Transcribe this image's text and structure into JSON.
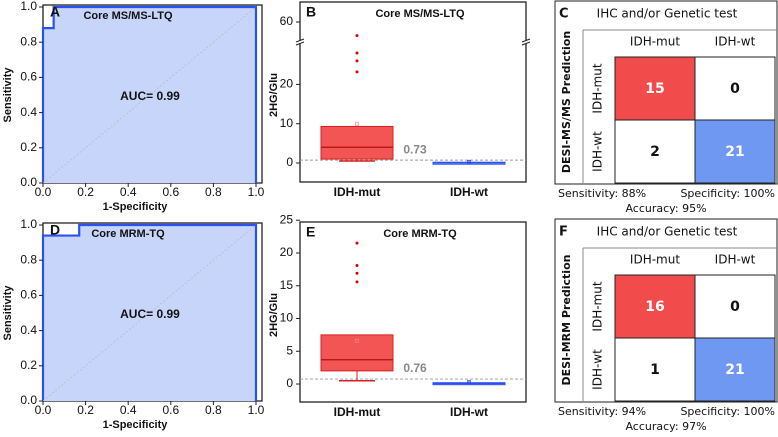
{
  "colors": {
    "roc_fill": "#c7d5fb",
    "roc_line": "#2a52f0",
    "red": "#f24b4b",
    "red_edge": "#d42020",
    "blue": "#6f98f2",
    "blue_edge": "#2a52f0",
    "grid": "#bbbbbb"
  },
  "chart_data": [
    {
      "panel": "A",
      "type": "line",
      "title": "Core MS/MS-LTQ",
      "xlabel": "1-Specificity",
      "ylabel": "Sensitivity",
      "xlim": [
        0,
        1
      ],
      "ylim": [
        0,
        1
      ],
      "xticks": [
        "0.0",
        "0.2",
        "0.4",
        "0.6",
        "0.8",
        "1.0"
      ],
      "yticks": [
        "0.0",
        "0.2",
        "0.4",
        "0.6",
        "0.8",
        "1.0"
      ],
      "points": [
        [
          0,
          0
        ],
        [
          0,
          0.88
        ],
        [
          0.05,
          0.88
        ],
        [
          0.05,
          1
        ],
        [
          1,
          1
        ],
        [
          1,
          0
        ]
      ],
      "annotation": "AUC= 0.99"
    },
    {
      "panel": "B",
      "type": "box",
      "title": "Core MS/MS-LTQ",
      "ylabel": "2HG/Glu",
      "categories": [
        "IDH-mut",
        "IDH-wt"
      ],
      "yticks_lower": [
        "0",
        "10",
        "20"
      ],
      "yticks_upper": [
        "60"
      ],
      "axis_break": true,
      "ylim_lower": [
        -5,
        30
      ],
      "ylim_upper": [
        40,
        65
      ],
      "boxes": [
        {
          "q1": 1,
          "median": 4,
          "q3": 9.3,
          "low": 0.5,
          "high": 9.3,
          "mean": 10,
          "outliers": [
            23.2,
            26,
            28,
            47
          ]
        },
        {
          "q1": 0,
          "median": 0.1,
          "q3": 0.2,
          "low": 0,
          "high": 0.8,
          "mean": 0.3,
          "outliers": []
        }
      ],
      "threshold": 0.73,
      "threshold_label": "0.73"
    },
    {
      "panel": "C",
      "type": "table",
      "title": "IHC and/or Genetic test",
      "row_header": "DESI-MS/MS Prediction",
      "columns": [
        "IDH-mut",
        "IDH-wt"
      ],
      "rows": [
        "IDH-mut",
        "IDH-wt"
      ],
      "matrix": [
        [
          "15",
          "0"
        ],
        [
          "2",
          "21"
        ]
      ],
      "sensitivity": "Sensitivity: 88%",
      "specificity": "Specificity: 100%",
      "accuracy": "Accuracy: 95%"
    },
    {
      "panel": "D",
      "type": "line",
      "title": "Core MRM-TQ",
      "xlabel": "1-Specificity",
      "ylabel": "Sensitivity",
      "xlim": [
        0,
        1
      ],
      "ylim": [
        0,
        1
      ],
      "xticks": [
        "0.0",
        "0.2",
        "0.4",
        "0.6",
        "0.8",
        "1.0"
      ],
      "yticks": [
        "0.0",
        "0.2",
        "0.4",
        "0.6",
        "0.8",
        "1.0"
      ],
      "points": [
        [
          0,
          0
        ],
        [
          0,
          0.94
        ],
        [
          0.17,
          0.94
        ],
        [
          0.17,
          1
        ],
        [
          1,
          1
        ],
        [
          1,
          0
        ]
      ],
      "annotation": "AUC= 0.99"
    },
    {
      "panel": "E",
      "type": "box",
      "title": "Core MRM-TQ",
      "ylabel": "2HG/Glu",
      "categories": [
        "IDH-mut",
        "IDH-wt"
      ],
      "yticks_lower": [
        "0",
        "5",
        "10",
        "15",
        "20",
        "25"
      ],
      "yticks_upper": [],
      "axis_break": false,
      "ylim_lower": [
        -2.5,
        25
      ],
      "boxes": [
        {
          "q1": 2,
          "median": 3.7,
          "q3": 7.5,
          "low": 0.5,
          "high": 7.5,
          "mean": 6.6,
          "outliers": [
            15.6,
            16.9,
            18.1,
            21.5
          ]
        },
        {
          "q1": 0,
          "median": 0.1,
          "q3": 0.2,
          "low": 0,
          "high": 0.5,
          "mean": 0.3,
          "outliers": []
        }
      ],
      "threshold": 0.76,
      "threshold_label": "0.76"
    },
    {
      "panel": "F",
      "type": "table",
      "title": "IHC and/or Genetic test",
      "row_header": "DESI-MRM Prediction",
      "columns": [
        "IDH-mut",
        "IDH-wt"
      ],
      "rows": [
        "IDH-mut",
        "IDH-wt"
      ],
      "matrix": [
        [
          "16",
          "0"
        ],
        [
          "1",
          "21"
        ]
      ],
      "sensitivity": "Sensitivity: 94%",
      "specificity": "Specificity: 100%",
      "accuracy": "Accuracy: 97%"
    }
  ]
}
